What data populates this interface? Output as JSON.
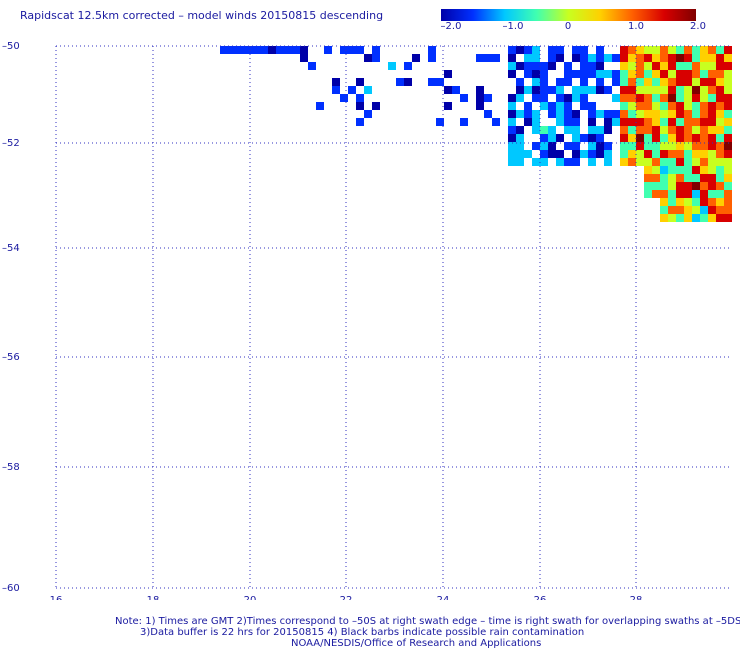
{
  "title": "Rapidscat 12.5km corrected – model winds 20150815 descending",
  "colorbar": {
    "labels": [
      "–2.0",
      "–1.0",
      "0",
      "1.0",
      "2.0"
    ],
    "colors": [
      "#0000a8",
      "#0030ff",
      "#00c8ff",
      "#40ffb0",
      "#c8ff20",
      "#ffd000",
      "#ff6000",
      "#d80000",
      "#800000"
    ]
  },
  "axes": {
    "x_ticks": [
      "16",
      "18",
      "20",
      "22",
      "24",
      "26",
      "28"
    ],
    "y_ticks": [
      "–50",
      "–52",
      "–54",
      "–56",
      "–58",
      "–60"
    ],
    "grid_color": "#3030c0"
  },
  "footer": {
    "line1": "Note: 1) Times are GMT 2)Times correspond to –50S at right swath edge – time is right swath for overlapping swaths at –5DS",
    "line2": "3)Data buffer is 22 hrs for 20150815 4) Black barbs indicate possible rain contamination",
    "line3": "NOAA/NESDIS/Office of Research and Applications"
  }
}
